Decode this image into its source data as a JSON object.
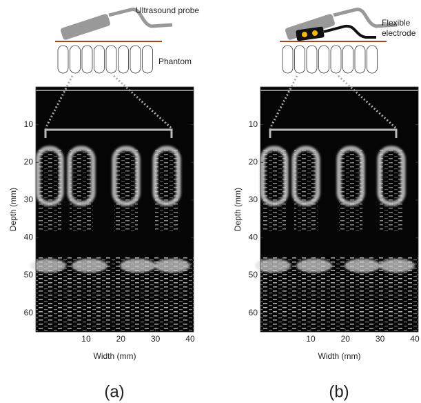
{
  "panels": [
    {
      "label": "(a)",
      "probe_label": "Ultrasound probe",
      "phantom_label": "Phantom",
      "xlabel": "Width (mm)",
      "ylabel": "Depth (mm)",
      "xlim": [
        -4.5,
        41
      ],
      "ylim": [
        0,
        65
      ],
      "xticks": [
        10,
        20,
        30,
        40
      ],
      "yticks": [
        10,
        20,
        30,
        40,
        50,
        60
      ]
    },
    {
      "label": "(b)",
      "electrode_label": [
        "Flexible",
        "electrode"
      ],
      "xlabel": "Width (mm)",
      "ylabel": "Depth (mm)",
      "xlim": [
        -4.5,
        41
      ],
      "ylim": [
        0,
        65
      ],
      "xticks": [
        10,
        20,
        30,
        40
      ],
      "yticks": [
        10,
        20,
        30,
        40,
        50,
        60
      ]
    }
  ]
}
